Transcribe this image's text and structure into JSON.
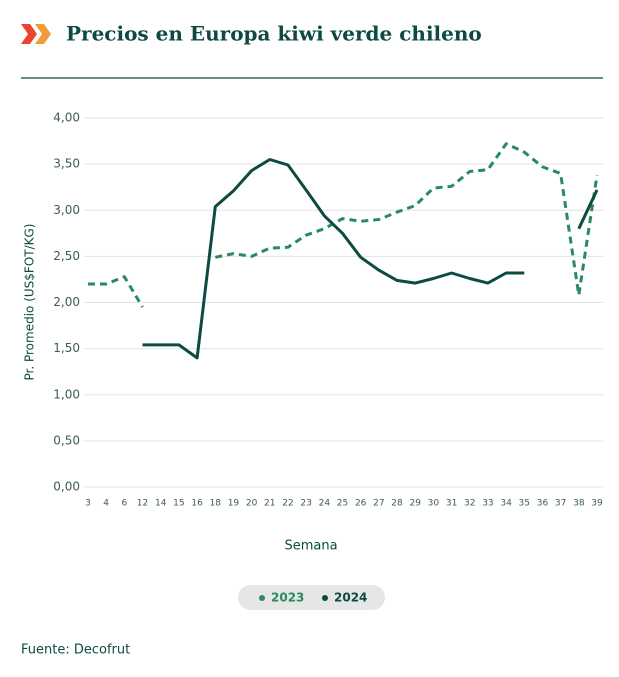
{
  "chart_data": {
    "type": "line",
    "title": "Precios en Europa kiwi verde chileno",
    "y_label": "Pr. Promedio (US$FOT/KG)",
    "x_label": "Semana",
    "source": "Fuente: Decofrut",
    "categories": [
      "3",
      "4",
      "6",
      "12",
      "14",
      "15",
      "16",
      "18",
      "19",
      "20",
      "21",
      "22",
      "23",
      "24",
      "25",
      "26",
      "27",
      "28",
      "29",
      "30",
      "31",
      "32",
      "33",
      "34",
      "35",
      "36",
      "37",
      "38",
      "39"
    ],
    "series": [
      {
        "name": "2023",
        "color": "#2a8a5f",
        "dashed": true,
        "values": [
          2.2,
          2.2,
          2.28,
          1.95,
          null,
          null,
          null,
          2.49,
          2.53,
          2.5,
          2.59,
          2.6,
          2.73,
          2.8,
          2.91,
          2.88,
          2.9,
          2.98,
          3.05,
          3.24,
          3.26,
          3.42,
          3.44,
          3.72,
          3.63,
          3.47,
          3.4,
          2.08,
          3.38
        ]
      },
      {
        "name": "2024",
        "color": "#0d4a42",
        "dashed": false,
        "values": [
          null,
          null,
          null,
          1.54,
          1.54,
          1.54,
          1.4,
          3.04,
          3.21,
          3.43,
          3.55,
          3.49,
          3.22,
          2.94,
          2.75,
          2.49,
          2.35,
          2.24,
          2.21,
          2.26,
          2.32,
          2.26,
          2.21,
          2.32,
          2.32,
          null,
          null,
          2.8,
          3.22
        ]
      }
    ],
    "ylim": [
      0,
      4
    ],
    "yticks": [
      {
        "value": 0,
        "label": "0,00"
      },
      {
        "value": 0.5,
        "label": "0,50"
      },
      {
        "value": 1,
        "label": "1,00"
      },
      {
        "value": 1.5,
        "label": "1,50"
      },
      {
        "value": 2,
        "label": "2,00"
      },
      {
        "value": 2.5,
        "label": "2,50"
      },
      {
        "value": 3,
        "label": "3,00"
      },
      {
        "value": 3.5,
        "label": "3,50"
      },
      {
        "value": 4,
        "label": "4,00"
      }
    ],
    "grid": true
  }
}
